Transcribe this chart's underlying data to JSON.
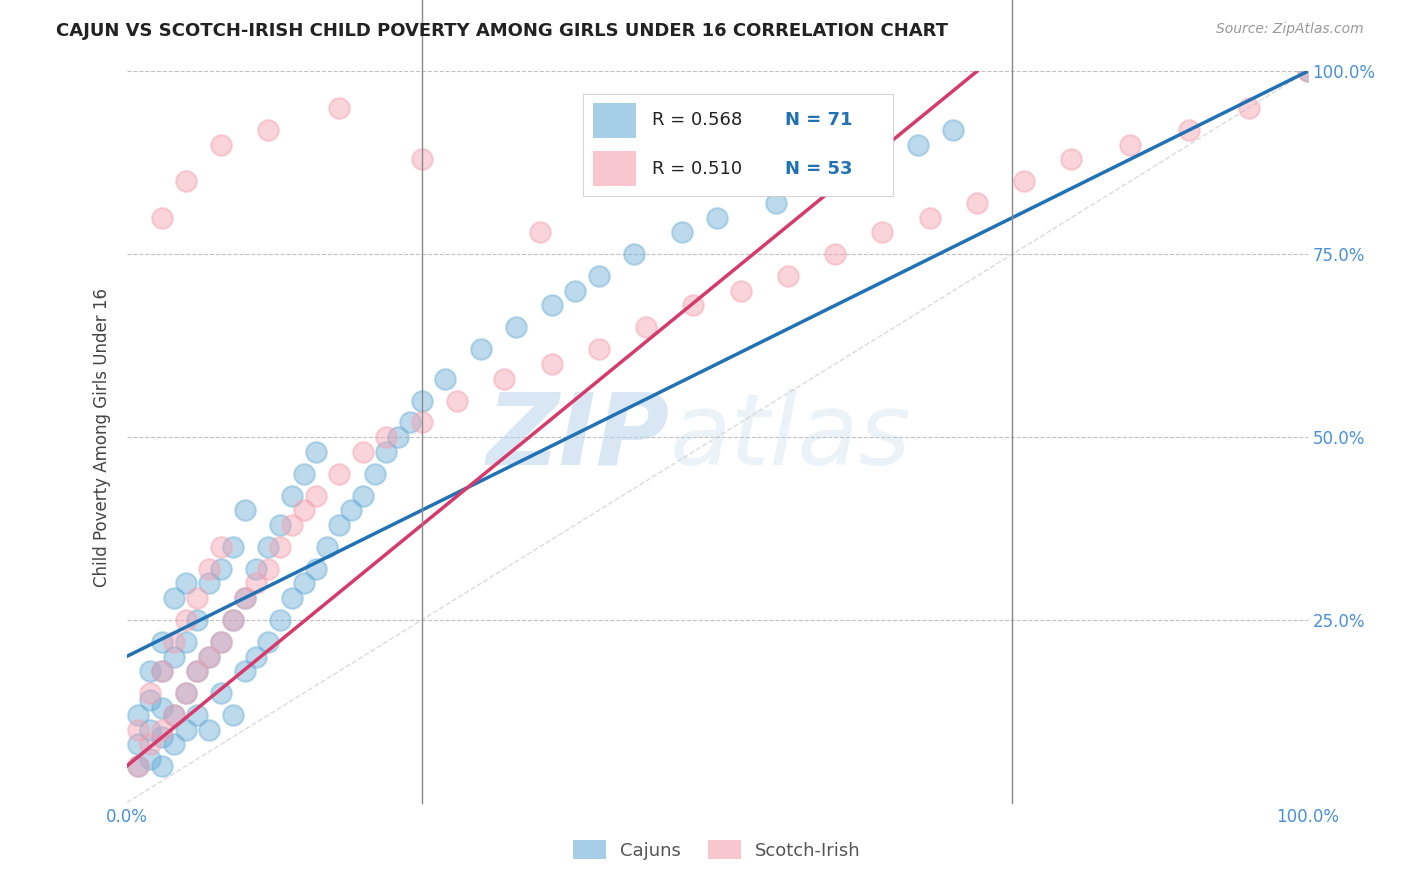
{
  "title": "CAJUN VS SCOTCH-IRISH CHILD POVERTY AMONG GIRLS UNDER 16 CORRELATION CHART",
  "source": "Source: ZipAtlas.com",
  "ylabel": "Child Poverty Among Girls Under 16",
  "xlim": [
    0,
    100
  ],
  "ylim": [
    0,
    100
  ],
  "yticks": [
    25,
    50,
    75,
    100
  ],
  "yticklabels": [
    "25.0%",
    "50.0%",
    "75.0%",
    "100.0%"
  ],
  "cajun_color": "#6baed6",
  "scotch_color": "#f4a0b0",
  "cajun_line_color": "#2171b5",
  "scotch_line_color": "#d63a6a",
  "legend_cajun_r": "0.568",
  "legend_cajun_n": "71",
  "legend_scotch_r": "0.510",
  "legend_scotch_n": "53",
  "background_color": "#ffffff",
  "grid_color": "#bbbbbb",
  "cajun_line": {
    "x0": 0,
    "y0": 20,
    "x1": 100,
    "y1": 100
  },
  "scotch_line": {
    "x0": 0,
    "y0": 5,
    "x1": 72,
    "y1": 100
  },
  "cajun_x": [
    1,
    1,
    1,
    2,
    2,
    2,
    2,
    3,
    3,
    3,
    3,
    3,
    4,
    4,
    4,
    4,
    5,
    5,
    5,
    5,
    6,
    6,
    6,
    7,
    7,
    7,
    8,
    8,
    8,
    9,
    9,
    9,
    10,
    10,
    10,
    11,
    11,
    12,
    12,
    13,
    13,
    14,
    14,
    15,
    15,
    16,
    16,
    17,
    18,
    19,
    20,
    21,
    22,
    23,
    24,
    25,
    27,
    30,
    33,
    36,
    38,
    40,
    43,
    47,
    50,
    55,
    58,
    62,
    67,
    70,
    100
  ],
  "cajun_y": [
    5,
    8,
    12,
    6,
    10,
    14,
    18,
    5,
    9,
    13,
    18,
    22,
    8,
    12,
    20,
    28,
    10,
    15,
    22,
    30,
    12,
    18,
    25,
    10,
    20,
    30,
    15,
    22,
    32,
    12,
    25,
    35,
    18,
    28,
    40,
    20,
    32,
    22,
    35,
    25,
    38,
    28,
    42,
    30,
    45,
    32,
    48,
    35,
    38,
    40,
    42,
    45,
    48,
    50,
    52,
    55,
    58,
    62,
    65,
    68,
    70,
    72,
    75,
    78,
    80,
    82,
    85,
    88,
    90,
    92,
    100
  ],
  "scotch_x": [
    1,
    1,
    2,
    2,
    3,
    3,
    4,
    4,
    5,
    5,
    6,
    6,
    7,
    7,
    8,
    8,
    9,
    10,
    11,
    12,
    13,
    14,
    15,
    16,
    18,
    20,
    22,
    25,
    28,
    32,
    36,
    40,
    44,
    48,
    52,
    56,
    60,
    64,
    68,
    72,
    76,
    80,
    85,
    90,
    95,
    100,
    3,
    5,
    8,
    12,
    18,
    25,
    35
  ],
  "scotch_y": [
    5,
    10,
    8,
    15,
    10,
    18,
    12,
    22,
    15,
    25,
    18,
    28,
    20,
    32,
    22,
    35,
    25,
    28,
    30,
    32,
    35,
    38,
    40,
    42,
    45,
    48,
    50,
    52,
    55,
    58,
    60,
    62,
    65,
    68,
    70,
    72,
    75,
    78,
    80,
    82,
    85,
    88,
    90,
    92,
    95,
    100,
    80,
    85,
    90,
    92,
    95,
    88,
    78
  ]
}
